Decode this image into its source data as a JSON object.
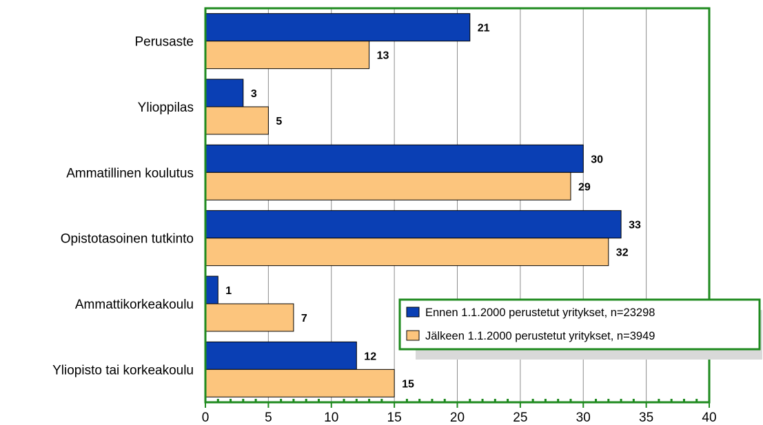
{
  "chart_data": {
    "type": "bar",
    "orientation": "horizontal",
    "title": "",
    "xlabel": "",
    "ylabel": "",
    "categories": [
      "Perusaste",
      "Ylioppilas",
      "Ammatillinen koulutus",
      "Opistotasoinen tutkinto",
      "Ammattikorkeakoulu",
      "Yliopisto tai korkeakoulu"
    ],
    "series": [
      {
        "name": "Ennen 1.1.2000 perustetut yritykset, n=23298",
        "values": [
          21,
          3,
          30,
          33,
          1,
          12
        ],
        "color": "#0a3fb4"
      },
      {
        "name": "Jälkeen 1.1.2000 perustetut yritykset, n=3949",
        "values": [
          13,
          5,
          29,
          32,
          7,
          15
        ],
        "color": "#fcc57d"
      }
    ],
    "xlim": [
      0,
      40
    ],
    "xticks": [
      "0",
      "5",
      "10",
      "15",
      "20",
      "25",
      "30",
      "35",
      "40"
    ],
    "grid": true,
    "legend_position": "bottom-right",
    "frame_color": "#1e8a1e"
  }
}
